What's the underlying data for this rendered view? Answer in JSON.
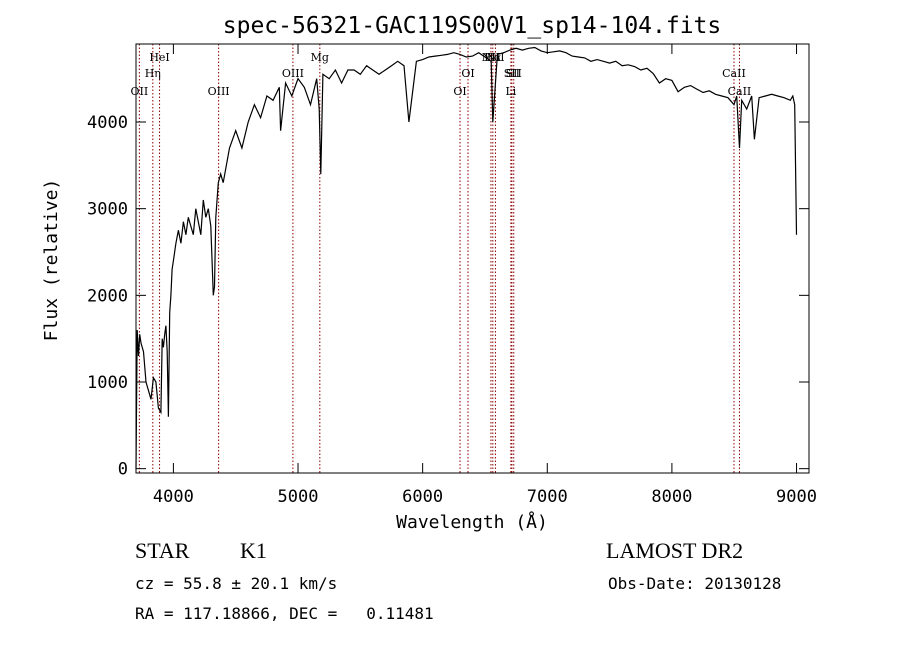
{
  "chart_data": {
    "type": "line",
    "title": "spec-56321-GAC119S00V1_sp14-104.fits",
    "xlabel": "Wavelength (Å)",
    "ylabel": "Flux (relative)",
    "xlim": [
      3700,
      9100
    ],
    "ylim": [
      -50,
      4900
    ],
    "xticks": [
      4000,
      5000,
      6000,
      7000,
      8000,
      9000
    ],
    "yticks": [
      0,
      1000,
      2000,
      3000,
      4000
    ],
    "grid": false,
    "series": [
      {
        "x": [
          3700,
          3710,
          3720,
          3730,
          3740,
          3760,
          3780,
          3800,
          3820,
          3840,
          3860,
          3880,
          3900,
          3910,
          3920,
          3930,
          3940,
          3950,
          3960,
          3970,
          3980,
          3990,
          4000,
          4020,
          4040,
          4060,
          4080,
          4100,
          4120,
          4140,
          4160,
          4180,
          4200,
          4220,
          4240,
          4260,
          4280,
          4300,
          4320,
          4330,
          4340,
          4360,
          4380,
          4400,
          4450,
          4500,
          4550,
          4600,
          4650,
          4700,
          4750,
          4800,
          4850,
          4860,
          4900,
          4950,
          5000,
          5050,
          5100,
          5150,
          5170,
          5183,
          5200,
          5250,
          5300,
          5350,
          5400,
          5450,
          5500,
          5550,
          5600,
          5650,
          5700,
          5750,
          5800,
          5850,
          5890,
          5950,
          6000,
          6050,
          6100,
          6150,
          6200,
          6250,
          6300,
          6350,
          6400,
          6450,
          6500,
          6550,
          6563,
          6600,
          6650,
          6700,
          6750,
          6800,
          6850,
          6900,
          6950,
          7000,
          7050,
          7100,
          7150,
          7200,
          7250,
          7300,
          7350,
          7400,
          7450,
          7500,
          7550,
          7600,
          7650,
          7700,
          7750,
          7800,
          7850,
          7900,
          7950,
          8000,
          8050,
          8100,
          8150,
          8200,
          8250,
          8300,
          8350,
          8400,
          8450,
          8498,
          8520,
          8542,
          8560,
          8600,
          8640,
          8662,
          8700,
          8750,
          8800,
          8850,
          8900,
          8950,
          8970,
          8985,
          9000
        ],
        "y": [
          0,
          1600,
          1300,
          1550,
          1450,
          1350,
          1000,
          900,
          800,
          1050,
          1000,
          700,
          650,
          1500,
          1400,
          1550,
          1650,
          1350,
          600,
          1800,
          2000,
          2300,
          2400,
          2600,
          2750,
          2600,
          2850,
          2700,
          2900,
          2800,
          2700,
          3000,
          2850,
          2700,
          3100,
          2900,
          3000,
          2800,
          2000,
          2100,
          2900,
          3300,
          3400,
          3300,
          3700,
          3900,
          3700,
          4000,
          4200,
          4050,
          4300,
          4250,
          4400,
          3900,
          4450,
          4300,
          4500,
          4400,
          4200,
          4500,
          4150,
          3400,
          4550,
          4500,
          4600,
          4450,
          4600,
          4600,
          4550,
          4650,
          4600,
          4550,
          4600,
          4650,
          4700,
          4650,
          4000,
          4700,
          4720,
          4750,
          4760,
          4770,
          4780,
          4800,
          4780,
          4750,
          4760,
          4800,
          4750,
          4700,
          4000,
          4780,
          4800,
          4830,
          4850,
          4830,
          4850,
          4860,
          4820,
          4800,
          4810,
          4820,
          4800,
          4760,
          4750,
          4740,
          4700,
          4720,
          4700,
          4680,
          4700,
          4650,
          4660,
          4640,
          4600,
          4620,
          4560,
          4450,
          4500,
          4480,
          4350,
          4400,
          4420,
          4380,
          4340,
          4360,
          4320,
          4300,
          4280,
          4200,
          4300,
          3700,
          4250,
          4150,
          4300,
          3800,
          4280,
          4300,
          4320,
          4300,
          4280,
          4250,
          4300,
          4200,
          2700
        ]
      }
    ],
    "lines": [
      {
        "label": "OII",
        "x": 3727,
        "row": 2
      },
      {
        "label": "Hη",
        "x": 3835,
        "row": 1
      },
      {
        "label": "HeI",
        "x": 3889,
        "row": 0
      },
      {
        "label": "OIII",
        "x": 4363,
        "row": 2
      },
      {
        "label": "OIII",
        "x": 4959,
        "row": 1
      },
      {
        "label": "Mg",
        "x": 5175,
        "row": 0
      },
      {
        "label": "OI",
        "x": 6300,
        "row": 2
      },
      {
        "label": "OI",
        "x": 6364,
        "row": 1
      },
      {
        "label": "NII",
        "x": 6548,
        "row": 0
      },
      {
        "label": "Hα",
        "x": 6563,
        "row": 0
      },
      {
        "label": "NII",
        "x": 6584,
        "row": 0
      },
      {
        "label": "SII",
        "x": 6716,
        "row": 1
      },
      {
        "label": "Li",
        "x": 6708,
        "row": 2
      },
      {
        "label": "SII",
        "x": 6731,
        "row": 1
      },
      {
        "label": "CaII",
        "x": 8498,
        "row": 1
      },
      {
        "label": "CaII",
        "x": 8542,
        "row": 2
      }
    ]
  },
  "info": {
    "class_type": "STAR",
    "subclass": "K1",
    "survey": "LAMOST DR2",
    "cz_line": "cz = 55.8 ± 20.1 km/s",
    "obs_date": "Obs-Date: 20130128",
    "radec": "RA = 117.18866, DEC =   0.11481"
  },
  "colors": {
    "spectrum": "#000000",
    "line_markers": "#8b0000",
    "background": "#ffffff"
  }
}
